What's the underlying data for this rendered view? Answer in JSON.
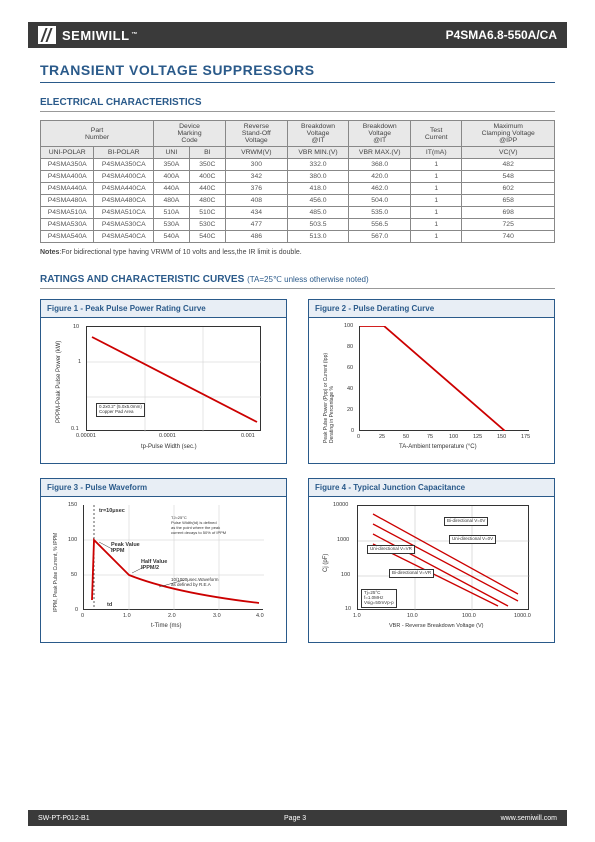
{
  "header": {
    "brand": "SEMIWILL",
    "tm": "™",
    "part": "P4SMA6.8-550A/CA"
  },
  "title": "TRANSIENT VOLTAGE SUPPRESSORS",
  "section1": "ELECTRICAL CHARACTERISTICS",
  "table": {
    "head1": [
      "Part\nNumber",
      "Device\nMarking\nCode",
      "Reverse\nStand-Off\nVoltage",
      "Breakdown\nVoltage\n@IT",
      "Breakdown\nVoltage\n@IT",
      "Test\nCurrent",
      "Maximum\nClamping Voltage\n@IPP"
    ],
    "head2": [
      "UNI-POLAR",
      "BI-POLAR",
      "UNI",
      "BI",
      "VRWM(V)",
      "VBR MIN.(V)",
      "VBR MAX.(V)",
      "IT(mA)",
      "VC(V)"
    ],
    "rows": [
      [
        "P4SMA350A",
        "P4SMA350CA",
        "350A",
        "350C",
        "300",
        "332.0",
        "368.0",
        "1",
        "482"
      ],
      [
        "P4SMA400A",
        "P4SMA400CA",
        "400A",
        "400C",
        "342",
        "380.0",
        "420.0",
        "1",
        "548"
      ],
      [
        "P4SMA440A",
        "P4SMA440CA",
        "440A",
        "440C",
        "376",
        "418.0",
        "462.0",
        "1",
        "602"
      ],
      [
        "P4SMA480A",
        "P4SMA480CA",
        "480A",
        "480C",
        "408",
        "456.0",
        "504.0",
        "1",
        "658"
      ],
      [
        "P4SMA510A",
        "P4SMA510CA",
        "510A",
        "510C",
        "434",
        "485.0",
        "535.0",
        "1",
        "698"
      ],
      [
        "P4SMA530A",
        "P4SMA530CA",
        "530A",
        "530C",
        "477",
        "503.5",
        "556.5",
        "1",
        "725"
      ],
      [
        "P4SMA540A",
        "P4SMA540CA",
        "540A",
        "540C",
        "486",
        "513.0",
        "567.0",
        "1",
        "740"
      ]
    ]
  },
  "notes": {
    "label": "Notes",
    "text": ":For bidirectional type having VRWM of 10 volts and less,the IR limit is double."
  },
  "curves_heading": "RATINGS AND CHARACTERISTIC CURVES",
  "curves_cond": "(TA=25℃ unless otherwise noted)",
  "fig1": {
    "title": "Figure 1 - Peak Pulse Power Rating Curve",
    "ylabel": "PPPM-Peak Pulse Power (kW)",
    "xlabel": "tp-Pulse Width (sec.)",
    "yticks": [
      "10",
      "1",
      "0.1"
    ],
    "xticks": [
      "0.00001",
      "0.0001",
      "0.001"
    ],
    "note": "0.2x0.2\" (5.0x5.0mm)\nCopper Pad Area",
    "line_color": "#cc0000",
    "grid_color": "#cccccc",
    "border_color": "#333333"
  },
  "fig2": {
    "title": "Figure 2 - Pulse Derating Curve",
    "ylabel": "Peak Pulse Power (Ppp) or Current (Ipp)\nDerating in Percentage %",
    "xlabel": "TA-Ambient temperature (°C)",
    "yticks": [
      "100",
      "80",
      "60",
      "40",
      "20",
      "0"
    ],
    "xticks": [
      "0",
      "25",
      "50",
      "75",
      "100",
      "125",
      "150",
      "175"
    ],
    "line_color": "#cc0000",
    "grid_color": "#cccccc",
    "border_color": "#333333"
  },
  "fig3": {
    "title": "Figure 3 - Pulse Waveform",
    "ylabel": "IPPM, Peak Pulse Current, % IPPM",
    "xlabel": "t-Time (ms)",
    "yticks": [
      "150",
      "100",
      "50",
      "0"
    ],
    "xticks": [
      "0",
      "1.0",
      "2.0",
      "3.0",
      "4.0"
    ],
    "tr_label": "tr=10μsec",
    "peak_label": "Peak Value\nIPPM",
    "half_label": "Half Value\nIPPM/2",
    "waveform_note": "10/1000μsec.Waveform\nas defined by R.E.A",
    "cond_note": "TJ=25°C\nPulse Width(td) is defined\nas the point where the peak\ncurrent decays to 50% of IPPM",
    "td_label": "td",
    "line_color": "#cc0000",
    "grid_color": "#cccccc",
    "border_color": "#333333"
  },
  "fig4": {
    "title": "Figure 4 - Typical Junction Capacitance",
    "ylabel": "Cj (pF)",
    "xlabel": "VBR - Reverse Breakdown Voltage (V)",
    "yticks": [
      "10000",
      "1000",
      "100",
      "10"
    ],
    "xticks": [
      "1.0",
      "10.0",
      "100.0",
      "1000.0"
    ],
    "labels": [
      "Bi-directional V=0V",
      "Uni-directional V=0V",
      "Uni-directional V=VR",
      "Bi-directional V=VR"
    ],
    "cond_note": "Tj=25°C\nf=1.0MHz\nVsig=50mVp-p",
    "line_color": "#cc0000",
    "grid_color": "#aaaaaa",
    "border_color": "#333333"
  },
  "footer": {
    "left": "SW-PT-P012-B1",
    "center": "Page 3",
    "right": "www.semiwill.com"
  }
}
